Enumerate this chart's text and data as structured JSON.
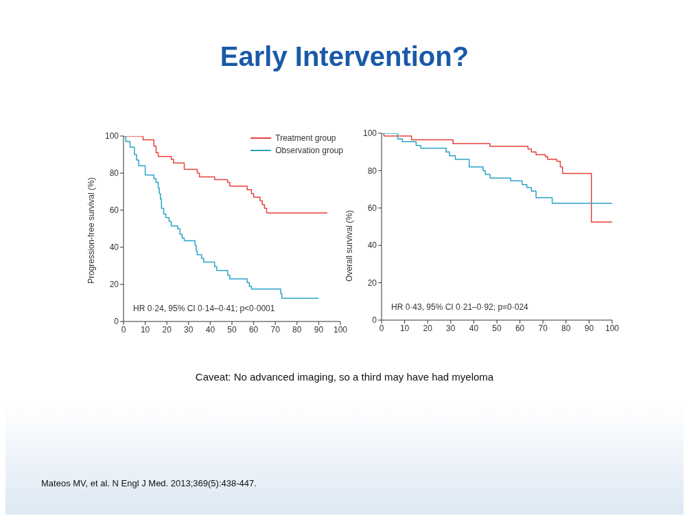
{
  "chart_data": [
    {
      "type": "step",
      "title": "Early Intervention?",
      "ylabel": "Progression-free survival (%)",
      "xlim": [
        0,
        100
      ],
      "xticks": [
        0,
        10,
        20,
        30,
        40,
        50,
        60,
        70,
        80,
        90,
        100
      ],
      "ylim": [
        0,
        100
      ],
      "yticks": [
        0,
        20,
        40,
        60,
        80,
        100
      ],
      "grid": false,
      "legend": "top right",
      "annotations": [
        "HR 0·24, 95% CI 0·14–0·41; p<0·0001"
      ],
      "series": [
        {
          "name": "Treatment group",
          "color": "#e8403a",
          "x": [
            0,
            9,
            14,
            15,
            16,
            17,
            22,
            23,
            28,
            34,
            35,
            42,
            48,
            49,
            57,
            59,
            60,
            63,
            64,
            65,
            66,
            94
          ],
          "values": [
            100,
            98,
            94.5,
            91,
            89,
            89,
            87.5,
            85.5,
            82,
            80,
            78,
            76.5,
            75,
            73,
            71,
            69,
            67,
            65,
            63,
            61,
            58.5,
            58.5
          ]
        },
        {
          "name": "Observation group",
          "color": "#2aa3c8",
          "x": [
            0,
            1,
            3,
            5,
            6,
            7,
            10,
            14,
            15,
            16,
            16.5,
            17,
            17.5,
            18.5,
            19.5,
            21,
            22,
            25,
            26,
            27,
            28,
            33,
            33.5,
            34,
            36,
            37,
            42,
            43,
            48,
            49,
            57,
            58,
            59,
            72.5,
            73,
            90
          ],
          "values": [
            100,
            97,
            94,
            90,
            87,
            84,
            79,
            77,
            75,
            72,
            69,
            66,
            61,
            58,
            56,
            54,
            51.5,
            50,
            47,
            45,
            43.5,
            41,
            38,
            36,
            34,
            32,
            29.5,
            27.5,
            25,
            23,
            21,
            19,
            17.5,
            15,
            12.5,
            12.5
          ]
        }
      ]
    },
    {
      "type": "step",
      "ylabel": "Overall survival (%)",
      "xlim": [
        0,
        100
      ],
      "xticks": [
        0,
        10,
        20,
        30,
        40,
        50,
        60,
        70,
        80,
        90,
        100
      ],
      "ylim": [
        0,
        100
      ],
      "yticks": [
        0,
        20,
        40,
        60,
        80,
        100
      ],
      "grid": false,
      "annotations": [
        "HR 0·43, 95% CI 0·21–0·92; p=0·024",
        "Caveat: No advanced imaging, so a third may have had myeloma",
        "Mateos MV, et al. N Engl J Med. 2013;369(5):438-447."
      ],
      "series": [
        {
          "color": "#e8403a",
          "x": [
            0,
            1,
            13,
            31,
            47,
            63.5,
            65,
            67,
            71,
            72,
            76,
            77.5,
            78.5,
            91,
            100
          ],
          "values": [
            100,
            98.5,
            96.5,
            94.5,
            93,
            91.5,
            90,
            88.5,
            87.5,
            86,
            85,
            82,
            78.5,
            52.5,
            52.5
          ]
        },
        {
          "color": "#2aa3c8",
          "x": [
            0,
            7,
            9,
            10,
            15,
            17,
            28,
            29.5,
            32,
            38,
            44,
            45,
            47,
            56,
            61,
            63,
            65,
            67,
            74,
            100
          ],
          "values": [
            100,
            97,
            95.5,
            95.5,
            93.5,
            92,
            90,
            88,
            86,
            82,
            80,
            78,
            76,
            74.5,
            72.5,
            71,
            69,
            65.5,
            62.5,
            62.5
          ]
        }
      ]
    }
  ]
}
